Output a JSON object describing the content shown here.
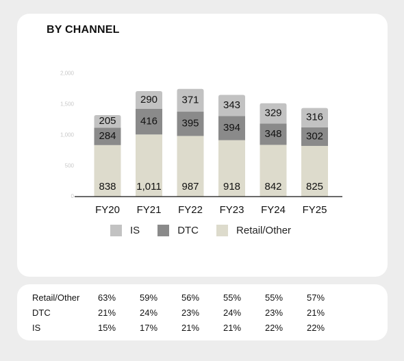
{
  "chart_title": "BY CHANNEL",
  "colors": {
    "IS": "#c2c2c2",
    "DTC": "#8a8a8a",
    "Retail/Other": "#dddbcc",
    "axis": "#111111"
  },
  "chart_data": {
    "type": "bar",
    "stacked": true,
    "title": "BY CHANNEL",
    "categories": [
      "FY20",
      "FY21",
      "FY22",
      "FY23",
      "FY24",
      "FY25"
    ],
    "series": [
      {
        "name": "Retail/Other",
        "values": [
          838,
          1011,
          987,
          918,
          842,
          825
        ],
        "labels": [
          "838",
          "1,011",
          "987",
          "918",
          "842",
          "825"
        ]
      },
      {
        "name": "DTC",
        "values": [
          284,
          416,
          395,
          394,
          348,
          302
        ],
        "labels": [
          "284",
          "416",
          "395",
          "394",
          "348",
          "302"
        ]
      },
      {
        "name": "IS",
        "values": [
          205,
          290,
          371,
          343,
          329,
          316
        ],
        "labels": [
          "205",
          "290",
          "371",
          "343",
          "329",
          "316"
        ]
      }
    ],
    "y_tick_labels": [
      "0",
      "500",
      "1,000",
      "1,500",
      "2,000"
    ],
    "ylim": [
      0,
      2000
    ],
    "legend_position": "bottom",
    "grid": false
  },
  "legend": [
    {
      "label": "IS",
      "color": "#c2c2c2"
    },
    {
      "label": "DTC",
      "color": "#8a8a8a"
    },
    {
      "label": "Retail/Other",
      "color": "#dddbcc"
    }
  ],
  "share_table": {
    "rows": [
      {
        "label": "Retail/Other",
        "values": [
          "63%",
          "59%",
          "56%",
          "55%",
          "55%",
          "57%"
        ]
      },
      {
        "label": "DTC",
        "values": [
          "21%",
          "24%",
          "23%",
          "24%",
          "23%",
          "21%"
        ]
      },
      {
        "label": "IS",
        "values": [
          "15%",
          "17%",
          "21%",
          "21%",
          "22%",
          "22%"
        ]
      }
    ]
  }
}
